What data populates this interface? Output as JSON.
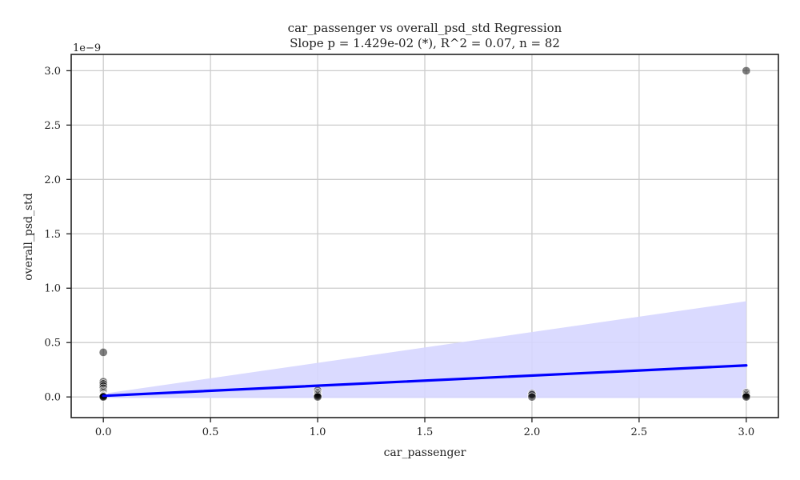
{
  "chart_data": {
    "type": "scatter",
    "title": "car_passenger vs overall_psd_std Regression",
    "subtitle": "Slope p = 1.429e-02 (*), R^2 = 0.07, n = 82",
    "xlabel": "car_passenger",
    "ylabel": "overall_psd_std",
    "y_offset_label": "1e−9",
    "xlim": [
      -0.15,
      3.15
    ],
    "ylim": [
      -0.19,
      3.15
    ],
    "grid": true,
    "x_ticks": [
      0.0,
      0.5,
      1.0,
      1.5,
      2.0,
      2.5,
      3.0
    ],
    "x_tick_labels": [
      "0.0",
      "0.5",
      "1.0",
      "1.5",
      "2.0",
      "2.5",
      "3.0"
    ],
    "y_ticks": [
      0.0,
      0.5,
      1.0,
      1.5,
      2.0,
      2.5,
      3.0
    ],
    "y_tick_labels": [
      "0.0",
      "0.5",
      "1.0",
      "1.5",
      "2.0",
      "2.5",
      "3.0"
    ],
    "points": [
      {
        "x": 0,
        "y": 0.41
      },
      {
        "x": 0,
        "y": 0.14
      },
      {
        "x": 0,
        "y": 0.12
      },
      {
        "x": 0,
        "y": 0.1
      },
      {
        "x": 0,
        "y": 0.08
      },
      {
        "x": 0,
        "y": 0.06
      },
      {
        "x": 0,
        "y": 0.05
      },
      {
        "x": 0,
        "y": 0.04
      },
      {
        "x": 0,
        "y": 0.03
      },
      {
        "x": 0,
        "y": 0.02
      },
      {
        "x": 0,
        "y": 0.015
      },
      {
        "x": 0,
        "y": 0.01
      },
      {
        "x": 0,
        "y": 0.005
      },
      {
        "x": 0,
        "y": 0.0
      },
      {
        "x": 1,
        "y": 0.06
      },
      {
        "x": 1,
        "y": 0.04
      },
      {
        "x": 1,
        "y": 0.03
      },
      {
        "x": 1,
        "y": 0.02
      },
      {
        "x": 1,
        "y": 0.01
      },
      {
        "x": 1,
        "y": 0.0
      },
      {
        "x": 2,
        "y": 0.03
      },
      {
        "x": 2,
        "y": 0.02
      },
      {
        "x": 2,
        "y": 0.0
      },
      {
        "x": 3,
        "y": 3.0
      },
      {
        "x": 3,
        "y": 0.04
      },
      {
        "x": 3,
        "y": 0.03
      },
      {
        "x": 3,
        "y": 0.02
      },
      {
        "x": 3,
        "y": 0.01
      },
      {
        "x": 3,
        "y": 0.0
      }
    ],
    "regression": {
      "x": [
        0,
        3
      ],
      "y": [
        0.01,
        0.29
      ]
    },
    "confidence_band": {
      "x": [
        0,
        3
      ],
      "upper": [
        0.03,
        0.88
      ],
      "lower": [
        -0.01,
        -0.01
      ]
    },
    "colors": {
      "points": "#000000",
      "regression_line": "#0000ff",
      "band": "#d6d6ff",
      "grid": "#cccccc",
      "frame": "#222222"
    }
  }
}
